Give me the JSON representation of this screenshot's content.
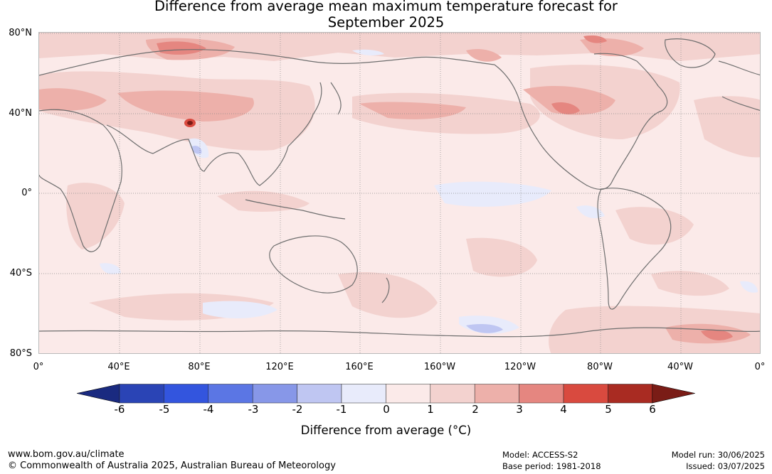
{
  "title": {
    "line1": "Difference from average mean maximum temperature forecast for",
    "line2": "September 2025"
  },
  "map": {
    "projection": "plate-carree",
    "center_longitude": "180",
    "background_anomaly_range": "0 to 1",
    "lat_labels": [
      "80°N",
      "40°N",
      "0°",
      "40°S",
      "80°S"
    ],
    "lon_labels": [
      "0°",
      "40°E",
      "80°E",
      "120°E",
      "160°E",
      "160°W",
      "120°W",
      "80°W",
      "40°W",
      "0°"
    ],
    "coastline_color": "#6e6e6e",
    "gridline_color": "#888888"
  },
  "colorbar": {
    "ticks": [
      "-6",
      "-5",
      "-4",
      "-3",
      "-2",
      "-1",
      "0",
      "1",
      "2",
      "3",
      "4",
      "5",
      "6"
    ],
    "colors": [
      "#1a2a80",
      "#2a44b5",
      "#3355de",
      "#5b76e4",
      "#8797e8",
      "#bfc6f2",
      "#e8ebfb",
      "#fbeae9",
      "#f3d2cf",
      "#edb0aa",
      "#e58680",
      "#d94a3f",
      "#a92b22",
      "#7a1c16"
    ],
    "label": "Difference from average (°C)"
  },
  "footer": {
    "left_line1": "www.bom.gov.au/climate",
    "left_line2": "© Commonwealth of Australia 2025, Australian Bureau of Meteorology",
    "model": "Model: ACCESS-S2",
    "base_period": "Base period: 1981-2018",
    "model_run": "Model run: 30/06/2025",
    "issued": "Issued: 03/07/2025"
  }
}
